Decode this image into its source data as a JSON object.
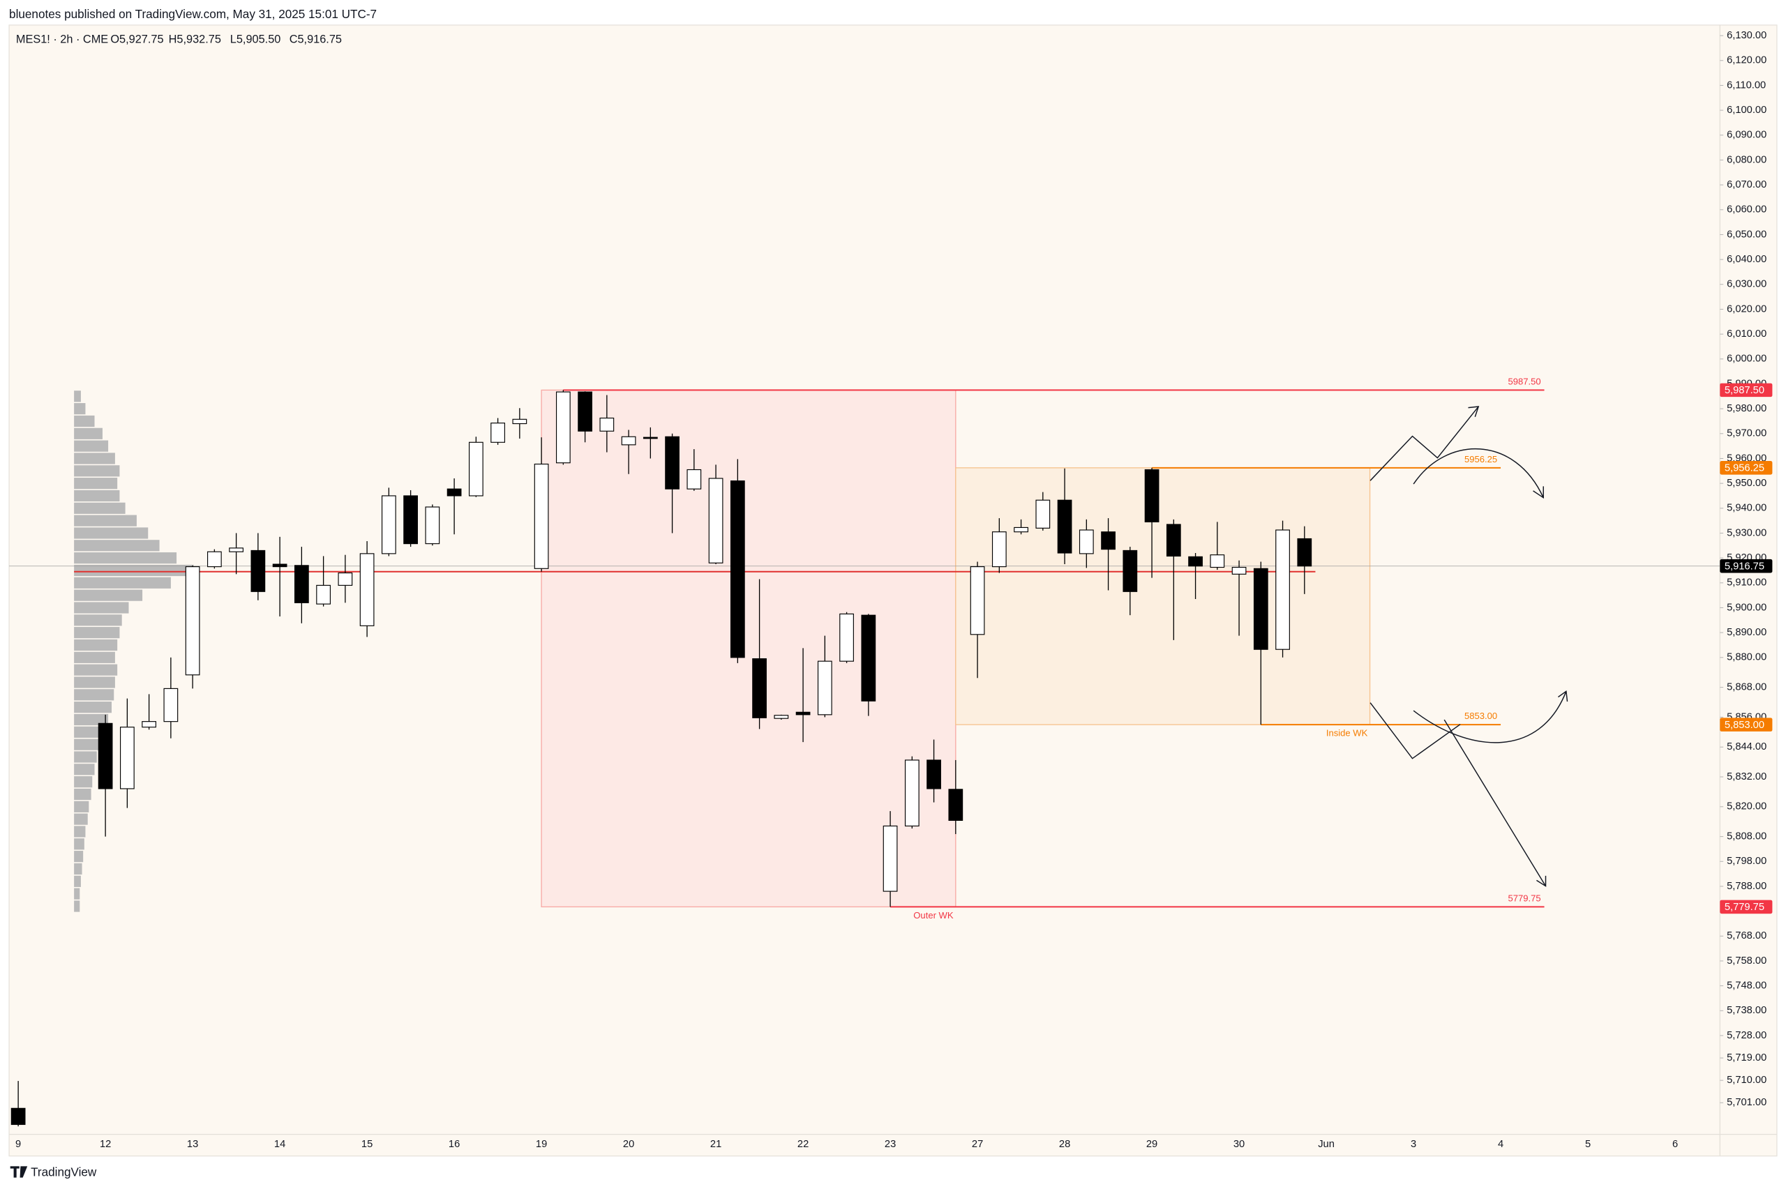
{
  "header": {
    "title": "bluenotes published on TradingView.com, May 31, 2025 15:01 UTC-7",
    "symbol": "MES1! · 2h · CME",
    "ohlc": [
      "O5,927.75",
      "H5,932.75",
      "L5,905.50",
      "C5,916.75"
    ]
  },
  "footer": {
    "brand": "TradingView"
  },
  "chart_data": {
    "type": "candlestick",
    "categories": [
      "9",
      null,
      null,
      null,
      "12",
      null,
      null,
      null,
      "13",
      null,
      null,
      null,
      "14",
      null,
      null,
      null,
      "15",
      null,
      null,
      null,
      "16",
      null,
      null,
      null,
      "19",
      null,
      null,
      null,
      "20",
      null,
      null,
      null,
      "21",
      null,
      null,
      null,
      "22",
      null,
      null,
      null,
      "23",
      null,
      null,
      null,
      "27",
      null,
      null,
      null,
      "28",
      null,
      null,
      null,
      "29",
      null,
      null,
      null,
      "30",
      null,
      null,
      null,
      "Jun",
      null,
      null,
      null,
      "3",
      null,
      null,
      null,
      "4",
      null,
      null,
      null,
      "5",
      null,
      null,
      null,
      "6",
      null
    ],
    "open": [
      5698.75,
      null,
      null,
      null,
      5853.5,
      5827.25,
      5852,
      5854.25,
      5873,
      5916.5,
      5922.5,
      5923,
      5917.5,
      5917,
      5901.5,
      5909,
      5892.75,
      5921.75,
      5945,
      5925.75,
      5947.75,
      5945,
      5966.5,
      5974,
      5915.75,
      5958.25,
      5986.75,
      5971,
      5965.5,
      5968.5,
      5968.75,
      5947.75,
      5918,
      5951,
      5879.5,
      5855.5,
      5858,
      5857,
      5878.5,
      5897,
      5786,
      5812.25,
      5838.75,
      5827,
      5889.25,
      5916.5,
      5930.5,
      5932,
      5943.25,
      5921.75,
      5930.5,
      5923,
      5955.5,
      5933.5,
      5920.5,
      5916.25,
      5913.5,
      5915.75,
      5883.25,
      5927.75,
      null,
      null,
      null,
      null,
      null,
      null,
      null,
      null,
      null,
      null,
      null,
      null,
      null,
      null,
      null,
      null,
      null,
      null
    ],
    "high": [
      5709.75,
      null,
      null,
      null,
      5857,
      5863.5,
      5865.25,
      5880,
      5917,
      5923.5,
      5930,
      5930,
      5928.5,
      5924.5,
      5920.75,
      5921.25,
      5926.75,
      5948.25,
      5947.25,
      5941.5,
      5952,
      5968.75,
      5976.25,
      5980.25,
      5968.5,
      5987.5,
      5987,
      5985.5,
      5971.5,
      5972.5,
      5970,
      5963.75,
      5957.5,
      5959.75,
      5911.5,
      5857,
      5883.75,
      5888.75,
      5898.25,
      5897.5,
      5818.25,
      5840.25,
      5847,
      5838.75,
      5918.5,
      5936,
      5935.5,
      5946.5,
      5956,
      5935.5,
      5936,
      5924.5,
      5956.25,
      5935.5,
      5922,
      5934.5,
      5919,
      5918.5,
      5935,
      5932.75,
      null,
      null,
      null,
      null,
      null,
      null,
      null,
      null,
      null,
      null,
      null,
      null,
      null,
      null,
      null,
      null,
      null,
      null
    ],
    "low": [
      5691.5,
      null,
      null,
      null,
      5808,
      5819.5,
      5851,
      5847.5,
      5867.5,
      5915.75,
      5913.5,
      5903,
      5896.5,
      5893.75,
      5900.5,
      5902,
      5888.25,
      5920.75,
      5924.5,
      5925,
      5929.5,
      5944.5,
      5965.5,
      5968,
      5914.5,
      5957.5,
      5966.5,
      5962.5,
      5953.75,
      5960,
      5930,
      5947,
      5917.5,
      5877.75,
      5851.25,
      5855,
      5846,
      5856,
      5877.75,
      5856.5,
      5779.75,
      5811.25,
      5821.75,
      5809,
      5871.75,
      5914,
      5929.5,
      5931,
      5917.5,
      5916,
      5907,
      5897,
      5912,
      5887,
      5903.5,
      5915.25,
      5888.75,
      5853,
      5880,
      5905.5,
      null,
      null,
      null,
      null,
      null,
      null,
      null,
      null,
      null,
      null,
      null,
      null,
      null,
      null,
      null,
      null,
      null,
      null
    ],
    "close": [
      5692.25,
      null,
      null,
      null,
      5827.25,
      5852,
      5854.25,
      5867.5,
      5916.5,
      5922.5,
      5924,
      5906.5,
      5916.5,
      5902,
      5909,
      5914,
      5921.75,
      5945,
      5925.75,
      5940.5,
      5945,
      5966.5,
      5974.25,
      5975.75,
      5957.75,
      5986.75,
      5971,
      5976.25,
      5968.75,
      5968.25,
      5947.75,
      5955.5,
      5952,
      5880,
      5855.75,
      5856.75,
      5857,
      5878.5,
      5897.5,
      5862.5,
      5812.25,
      5838.75,
      5827.25,
      5814.5,
      5916.5,
      5930.5,
      5932.25,
      5943.25,
      5922,
      5931.25,
      5923.5,
      5906.5,
      5934.5,
      5920.75,
      5916.75,
      5921.25,
      5916.25,
      5883.25,
      5931.25,
      5916.75,
      null,
      null,
      null,
      null,
      null,
      null,
      null,
      null,
      null,
      null,
      null,
      null,
      null,
      null,
      null,
      null,
      null,
      null
    ],
    "up_color": "#ffffff",
    "down_color": "#000000",
    "wick_color": "#000000",
    "ylim": [
      5688.75,
      6134.25
    ],
    "yticks": [
      {
        "value": 6130,
        "label": "6,130.00"
      },
      {
        "value": 6120,
        "label": "6,120.00"
      },
      {
        "value": 6110,
        "label": "6,110.00"
      },
      {
        "value": 6100,
        "label": "6,100.00"
      },
      {
        "value": 6090,
        "label": "6,090.00"
      },
      {
        "value": 6080,
        "label": "6,080.00"
      },
      {
        "value": 6070,
        "label": "6,070.00"
      },
      {
        "value": 6060,
        "label": "6,060.00"
      },
      {
        "value": 6050,
        "label": "6,050.00"
      },
      {
        "value": 6040,
        "label": "6,040.00"
      },
      {
        "value": 6030,
        "label": "6,030.00"
      },
      {
        "value": 6020,
        "label": "6,020.00"
      },
      {
        "value": 6010,
        "label": "6,010.00"
      },
      {
        "value": 6000,
        "label": "6,000.00"
      },
      {
        "value": 5990,
        "label": "5,990.00"
      },
      {
        "value": 5980,
        "label": "5,980.00"
      },
      {
        "value": 5970,
        "label": "5,970.00"
      },
      {
        "value": 5960,
        "label": "5,960.00"
      },
      {
        "value": 5950,
        "label": "5,950.00"
      },
      {
        "value": 5940,
        "label": "5,940.00"
      },
      {
        "value": 5930,
        "label": "5,930.00"
      },
      {
        "value": 5920,
        "label": "5,920.00"
      },
      {
        "value": 5910,
        "label": "5,910.00"
      },
      {
        "value": 5900,
        "label": "5,900.00"
      },
      {
        "value": 5890,
        "label": "5,890.00"
      },
      {
        "value": 5880,
        "label": "5,880.00"
      },
      {
        "value": 5868,
        "label": "5,868.00"
      },
      {
        "value": 5856,
        "label": "5,856.00"
      },
      {
        "value": 5844,
        "label": "5,844.00"
      },
      {
        "value": 5832,
        "label": "5,832.00"
      },
      {
        "value": 5820,
        "label": "5,820.00"
      },
      {
        "value": 5808,
        "label": "5,808.00"
      },
      {
        "value": 5798,
        "label": "5,798.00"
      },
      {
        "value": 5788,
        "label": "5,788.00"
      },
      {
        "value": 5768,
        "label": "5,768.00"
      },
      {
        "value": 5758,
        "label": "5,758.00"
      },
      {
        "value": 5748,
        "label": "5,748.00"
      },
      {
        "value": 5738,
        "label": "5,738.00"
      },
      {
        "value": 5728,
        "label": "5,728.00"
      },
      {
        "value": 5719,
        "label": "5,719.00"
      },
      {
        "value": 5710,
        "label": "5,710.00"
      },
      {
        "value": 5701,
        "label": "5,701.00"
      }
    ],
    "last": {
      "value": 5916.75,
      "label": "5,916.75",
      "color": "#000000"
    },
    "zones": [
      {
        "label": "Outer WK",
        "color": "#f7a8a3",
        "fill": "#fde9e5",
        "text_color": "#f23645",
        "x": [
          24,
          43
        ],
        "high": 5987.5,
        "low": 5779.75
      },
      {
        "label": "Inside WK",
        "color": "#f6c28d",
        "fill": "#fcefe0",
        "text_color": "#f57c00",
        "x": [
          43,
          62
        ],
        "high": 5956.25,
        "low": 5853
      }
    ],
    "levels": [
      {
        "price": {
          "value": 5987.5,
          "label": "5987.50"
        },
        "badge": "5,987.50",
        "color": "#f23645",
        "x": [
          25,
          70
        ]
      },
      {
        "price": {
          "value": 5956.25,
          "label": "5956.25"
        },
        "badge": "5,956.25",
        "color": "#f57c00",
        "x": [
          52,
          68
        ]
      },
      {
        "price": {
          "value": 5853,
          "label": "5853.00"
        },
        "badge": "5,853.00",
        "color": "#f57c00",
        "x": [
          57,
          68
        ]
      },
      {
        "price": {
          "value": 5779.75,
          "label": "5779.75"
        },
        "badge": "5,779.75",
        "color": "#f23645",
        "x": [
          40,
          70
        ]
      }
    ],
    "volume_profile": {
      "color": "#b9b9b9",
      "poc": 5914.5,
      "poc_color": "#e0312f",
      "levels": [
        5780,
        5785,
        5790,
        5795,
        5800,
        5805,
        5810,
        5815,
        5820,
        5825,
        5830,
        5835,
        5840,
        5845,
        5850,
        5855,
        5860,
        5865,
        5870,
        5875,
        5880,
        5885,
        5890,
        5895,
        5900,
        5905,
        5910,
        5915,
        5920,
        5925,
        5930,
        5935,
        5940,
        5945,
        5950,
        5955,
        5960,
        5965,
        5970,
        5975,
        5980,
        5985
      ],
      "volumes": [
        5,
        5,
        6,
        7,
        8,
        9,
        10,
        12,
        13,
        15,
        16,
        18,
        20,
        24,
        28,
        30,
        33,
        35,
        36,
        38,
        36,
        38,
        40,
        42,
        48,
        60,
        85,
        105,
        90,
        75,
        65,
        55,
        45,
        40,
        38,
        40,
        36,
        30,
        25,
        18,
        10,
        6
      ]
    }
  }
}
